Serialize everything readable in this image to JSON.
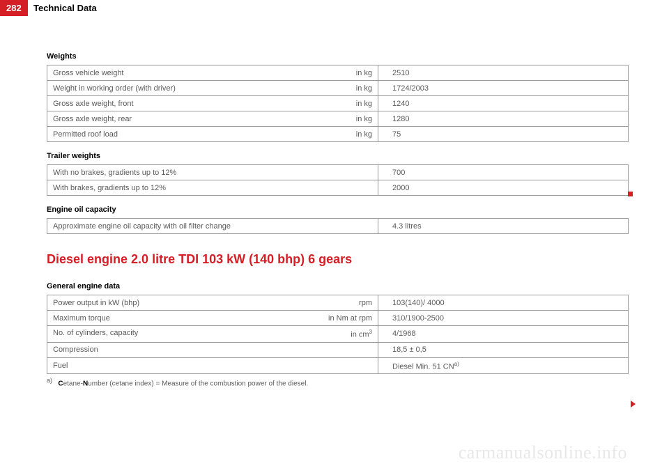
{
  "page_number": "282",
  "header": "Technical Data",
  "sections": {
    "weights": {
      "title": "Weights",
      "rows": [
        {
          "label": "Gross vehicle weight",
          "unit": "in kg",
          "value": "2510"
        },
        {
          "label": "Weight in working order (with driver)",
          "unit": "in kg",
          "value": "1724/2003"
        },
        {
          "label": "Gross axle weight, front",
          "unit": "in kg",
          "value": "1240"
        },
        {
          "label": "Gross axle weight, rear",
          "unit": "in kg",
          "value": "1280"
        },
        {
          "label": "Permitted roof load",
          "unit": "in kg",
          "value": "75"
        }
      ]
    },
    "trailer": {
      "title": "Trailer weights",
      "rows": [
        {
          "label": "With no brakes, gradients up to 12%",
          "value": "700"
        },
        {
          "label": "With brakes, gradients up to 12%",
          "value": "2000"
        }
      ]
    },
    "oil": {
      "title": "Engine oil capacity",
      "rows": [
        {
          "label": "Approximate engine oil capacity with oil filter change",
          "value": "4.3 litres"
        }
      ]
    }
  },
  "engine_heading": "Diesel engine 2.0 litre TDI 103 kW (140 bhp) 6 gears",
  "engine_section": {
    "title": "General engine data",
    "rows": [
      {
        "label": "Power output in kW (bhp)",
        "unit": "rpm",
        "value": "103(140)/ 4000"
      },
      {
        "label": "Maximum torque",
        "unit": "in Nm at rpm",
        "value": "310/1900-2500"
      },
      {
        "label": "No. of cylinders, capacity",
        "unit": "in cm",
        "unit_sup": "3",
        "value": "4/1968"
      },
      {
        "label": "Compression",
        "unit": "",
        "value": "18,5 ± 0,5"
      },
      {
        "label": "Fuel",
        "unit": "",
        "value": "Diesel Min. 51 CN",
        "value_sup": "a)"
      }
    ]
  },
  "footnote": {
    "marker": "a)",
    "b1": "C",
    "t1": "etane-",
    "b2": "N",
    "t2": "umber (cetane index) = Measure of the combustion power of the diesel."
  },
  "watermark": "carmanualsonline.info"
}
